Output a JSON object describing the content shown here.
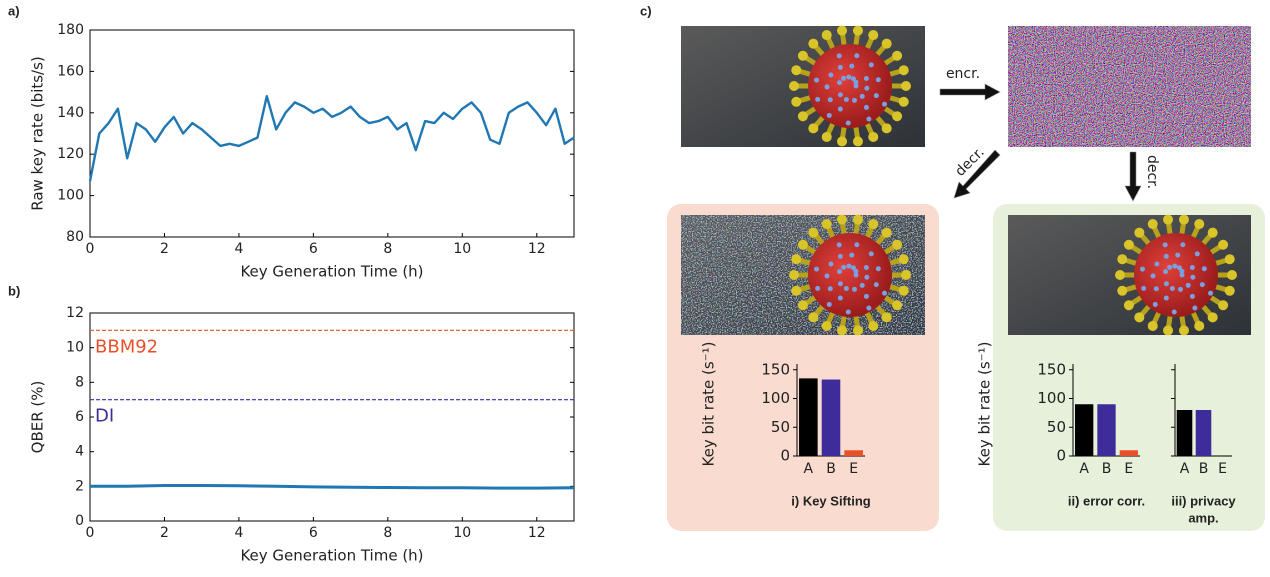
{
  "panel_labels": [
    "a)",
    "b)",
    "c)"
  ],
  "diagram": {
    "arrows": [
      {
        "label": "encr."
      },
      {
        "label": "decr."
      },
      {
        "label": "decr."
      }
    ]
  },
  "chart_data": [
    {
      "type": "line",
      "xlabel": "Key Generation Time (h)",
      "ylabel": "Raw key rate (bits/s)",
      "x": [
        0,
        0.25,
        0.5,
        0.75,
        1,
        1.25,
        1.5,
        1.75,
        2,
        2.25,
        2.5,
        2.75,
        3,
        3.25,
        3.5,
        3.75,
        4,
        4.25,
        4.5,
        4.75,
        5,
        5.25,
        5.5,
        5.75,
        6,
        6.25,
        6.5,
        6.75,
        7,
        7.25,
        7.5,
        7.75,
        8,
        8.25,
        8.5,
        8.75,
        9,
        9.25,
        9.5,
        9.75,
        10,
        10.25,
        10.5,
        10.75,
        11,
        11.25,
        11.5,
        11.75,
        12,
        12.25,
        12.5,
        12.75,
        13
      ],
      "values": [
        107,
        130,
        135,
        142,
        118,
        135,
        132,
        126,
        133,
        138,
        130,
        135,
        132,
        128,
        124,
        125,
        124,
        126,
        128,
        148,
        132,
        140,
        145,
        143,
        140,
        142,
        138,
        140,
        143,
        138,
        135,
        136,
        138,
        132,
        135,
        122,
        136,
        135,
        140,
        137,
        142,
        145,
        140,
        127,
        125,
        140,
        143,
        145,
        140,
        134,
        142,
        125,
        128
      ],
      "color": "#1f77b4",
      "xlim": [
        0,
        13
      ],
      "xticks": [
        0,
        2,
        4,
        6,
        8,
        10,
        12
      ],
      "ylim": [
        80,
        180
      ],
      "yticks": [
        80,
        100,
        120,
        140,
        160,
        180
      ]
    },
    {
      "type": "line",
      "xlabel": "Key Generation Time (h)",
      "ylabel": "QBER (%)",
      "x": [
        0,
        1,
        2,
        3,
        4,
        5,
        6,
        7,
        8,
        9,
        10,
        11,
        12,
        13
      ],
      "values": [
        2.0,
        2.0,
        2.05,
        2.05,
        2.03,
        2.0,
        1.97,
        1.95,
        1.93,
        1.92,
        1.92,
        1.9,
        1.9,
        1.92
      ],
      "color": "#1f77b4",
      "xlim": [
        0,
        13
      ],
      "xticks": [
        0,
        2,
        4,
        6,
        8,
        10,
        12
      ],
      "ylim": [
        0,
        12
      ],
      "yticks": [
        0,
        2,
        4,
        6,
        8,
        10,
        12
      ],
      "reference_lines": [
        {
          "name": "BBM92",
          "value": 11,
          "color": "#e8502a"
        },
        {
          "name": "DI",
          "value": 7,
          "color": "#3f2c9b"
        }
      ]
    },
    {
      "type": "bar",
      "title": "i) Key Sifting",
      "ylabel": "Key bit rate (s⁻¹)",
      "categories": [
        "A",
        "B",
        "E"
      ],
      "values": [
        135,
        133,
        10
      ],
      "colors": [
        "#000000",
        "#3f2c9b",
        "#e8502a"
      ],
      "ylim": [
        0,
        160
      ],
      "yticks": [
        0,
        50,
        100,
        150
      ],
      "tick_labels": true
    },
    {
      "type": "bar",
      "title": "ii) error corr.",
      "ylabel": "Key bit rate (s⁻¹)",
      "categories": [
        "A",
        "B",
        "E"
      ],
      "values": [
        90,
        90,
        10
      ],
      "colors": [
        "#000000",
        "#3f2c9b",
        "#e8502a"
      ],
      "ylim": [
        0,
        160
      ],
      "yticks": [
        0,
        50,
        100,
        150
      ],
      "tick_labels": true
    },
    {
      "type": "bar",
      "title": [
        "iii) privacy",
        "amp."
      ],
      "categories": [
        "A",
        "B",
        "E"
      ],
      "values": [
        80,
        80,
        0
      ],
      "colors": [
        "#000000",
        "#3f2c9b",
        "#e8502a"
      ],
      "ylim": [
        0,
        160
      ],
      "yticks": [
        0,
        50,
        100,
        150
      ],
      "tick_labels": false
    }
  ]
}
